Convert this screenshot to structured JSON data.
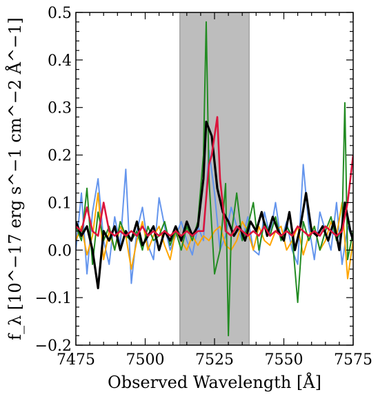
{
  "chart_data": {
    "type": "line",
    "xlabel": "Observed Wavelength [Å]",
    "ylabel": "f_λ [10^−17 erg s^−1 cm^−2 Å^−1]",
    "xlim": [
      7475,
      7575
    ],
    "ylim": [
      -0.2,
      0.5
    ],
    "x_ticks": [
      7475,
      7500,
      7525,
      7550,
      7575
    ],
    "y_ticks": [
      -0.2,
      -0.1,
      0.0,
      0.1,
      0.2,
      0.3,
      0.4,
      0.5
    ],
    "x_tick_labels": [
      "7475",
      "7500",
      "7525",
      "7550",
      "7575"
    ],
    "y_tick_labels": [
      "−0.2",
      "−0.1",
      "0.0",
      "0.1",
      "0.2",
      "0.3",
      "0.4",
      "0.5"
    ],
    "grid": false,
    "legend": "none",
    "shaded_region": {
      "x_start": 7512.5,
      "x_end": 7537.5,
      "color": "#bdbdbd"
    },
    "series": [
      {
        "color": "#6495ED",
        "x": [
          7475,
          7477,
          7479,
          7481,
          7483,
          7485,
          7487,
          7489,
          7491,
          7493,
          7495,
          7497,
          7499,
          7501,
          7503,
          7505,
          7507,
          7509,
          7511,
          7513,
          7515,
          7517,
          7519,
          7521,
          7523,
          7525,
          7527,
          7529,
          7531,
          7533,
          7535,
          7537,
          7539,
          7541,
          7543,
          7545,
          7547,
          7549,
          7551,
          7553,
          7555,
          7557,
          7559,
          7561,
          7563,
          7565,
          7567,
          7569,
          7571,
          7573,
          7575
        ],
        "y": [
          0.0,
          0.12,
          -0.05,
          0.08,
          0.15,
          0.02,
          -0.03,
          0.07,
          0.01,
          0.17,
          -0.07,
          0.04,
          0.09,
          0.01,
          -0.02,
          0.11,
          0.05,
          0.0,
          0.03,
          0.06,
          0.02,
          -0.01,
          0.05,
          0.02,
          0.21,
          0.12,
          0.0,
          0.03,
          0.09,
          0.05,
          0.02,
          0.07,
          0.0,
          -0.01,
          0.08,
          0.03,
          0.1,
          0.02,
          0.06,
          0.0,
          -0.03,
          0.18,
          0.05,
          -0.02,
          0.08,
          0.04,
          0.0,
          0.1,
          -0.03,
          0.05,
          0.02
        ]
      },
      {
        "color": "#FFA500",
        "x": [
          7475,
          7477,
          7479,
          7481,
          7483,
          7485,
          7487,
          7489,
          7491,
          7493,
          7495,
          7497,
          7499,
          7501,
          7503,
          7505,
          7507,
          7509,
          7511,
          7513,
          7515,
          7517,
          7519,
          7521,
          7523,
          7525,
          7527,
          7529,
          7531,
          7533,
          7535,
          7537,
          7539,
          7541,
          7543,
          7545,
          7547,
          7549,
          7551,
          7553,
          7555,
          7557,
          7559,
          7561,
          7563,
          7565,
          7567,
          7569,
          7571,
          7573,
          7575
        ],
        "y": [
          0.02,
          0.05,
          -0.01,
          0.03,
          0.12,
          -0.02,
          0.04,
          0.0,
          0.05,
          0.03,
          -0.04,
          0.02,
          0.06,
          0.0,
          0.03,
          0.05,
          0.01,
          -0.02,
          0.04,
          0.02,
          0.0,
          0.03,
          0.01,
          0.03,
          0.02,
          0.04,
          0.05,
          0.01,
          0.0,
          0.02,
          0.06,
          0.04,
          0.0,
          0.05,
          0.02,
          0.01,
          0.04,
          0.05,
          0.0,
          0.02,
          0.05,
          -0.01,
          0.03,
          0.05,
          0.0,
          0.02,
          0.06,
          0.03,
          0.1,
          -0.06,
          0.02
        ]
      },
      {
        "color": "#228B22",
        "x": [
          7475,
          7477,
          7479,
          7481,
          7483,
          7485,
          7487,
          7489,
          7491,
          7493,
          7495,
          7497,
          7499,
          7501,
          7503,
          7505,
          7507,
          7509,
          7511,
          7513,
          7515,
          7517,
          7519,
          7521,
          7522,
          7523,
          7525,
          7527,
          7529,
          7530,
          7531,
          7533,
          7535,
          7537,
          7539,
          7541,
          7543,
          7545,
          7547,
          7549,
          7551,
          7553,
          7555,
          7557,
          7559,
          7561,
          7563,
          7565,
          7567,
          7569,
          7571,
          7572,
          7573,
          7575
        ],
        "y": [
          0.05,
          0.02,
          0.13,
          -0.03,
          0.08,
          0.02,
          0.05,
          0.0,
          0.06,
          0.03,
          0.02,
          0.04,
          0.0,
          0.05,
          0.02,
          0.03,
          0.06,
          0.01,
          0.04,
          0.0,
          0.05,
          0.02,
          0.06,
          0.2,
          0.48,
          0.15,
          -0.05,
          0.0,
          0.14,
          -0.18,
          0.03,
          0.12,
          0.02,
          0.05,
          0.1,
          0.0,
          0.06,
          0.03,
          0.07,
          0.02,
          0.05,
          0.03,
          -0.11,
          0.06,
          0.02,
          0.05,
          0.0,
          0.04,
          0.07,
          0.02,
          0.05,
          0.31,
          -0.02,
          0.04
        ]
      },
      {
        "color": "#000000",
        "x": [
          7475,
          7477,
          7479,
          7481,
          7483,
          7485,
          7487,
          7489,
          7491,
          7493,
          7495,
          7497,
          7499,
          7501,
          7503,
          7505,
          7507,
          7509,
          7511,
          7513,
          7515,
          7517,
          7519,
          7521,
          7522,
          7524,
          7526,
          7528,
          7530,
          7532,
          7534,
          7536,
          7538,
          7540,
          7542,
          7544,
          7546,
          7548,
          7550,
          7552,
          7554,
          7556,
          7558,
          7560,
          7562,
          7564,
          7566,
          7568,
          7570,
          7572,
          7574,
          7575
        ],
        "y": [
          0.06,
          0.03,
          0.05,
          0.0,
          -0.08,
          0.04,
          0.02,
          0.05,
          0.0,
          0.04,
          0.02,
          0.06,
          0.01,
          0.03,
          0.05,
          0.0,
          0.04,
          0.02,
          0.05,
          0.02,
          0.06,
          0.03,
          0.05,
          0.15,
          0.27,
          0.24,
          0.13,
          0.08,
          0.06,
          0.03,
          0.05,
          0.02,
          0.06,
          0.04,
          0.08,
          0.03,
          0.07,
          0.04,
          0.02,
          0.08,
          0.0,
          0.05,
          0.12,
          0.04,
          0.03,
          0.05,
          0.02,
          0.06,
          0.0,
          0.1,
          0.04,
          0.02
        ]
      },
      {
        "color": "#DC143C",
        "x": [
          7475,
          7477,
          7479,
          7481,
          7483,
          7485,
          7487,
          7489,
          7491,
          7493,
          7495,
          7497,
          7499,
          7501,
          7503,
          7505,
          7507,
          7509,
          7511,
          7513,
          7515,
          7517,
          7519,
          7521,
          7523,
          7524,
          7526,
          7527,
          7529,
          7531,
          7533,
          7535,
          7537,
          7539,
          7541,
          7543,
          7545,
          7547,
          7549,
          7551,
          7553,
          7555,
          7557,
          7559,
          7561,
          7563,
          7565,
          7567,
          7569,
          7571,
          7573,
          7575
        ],
        "y": [
          0.05,
          0.04,
          0.09,
          0.04,
          0.03,
          0.1,
          0.04,
          0.03,
          0.04,
          0.03,
          0.04,
          0.03,
          0.05,
          0.03,
          0.04,
          0.03,
          0.04,
          0.03,
          0.04,
          0.03,
          0.04,
          0.03,
          0.04,
          0.04,
          0.18,
          0.2,
          0.28,
          0.15,
          0.04,
          0.03,
          0.05,
          0.04,
          0.03,
          0.04,
          0.03,
          0.05,
          0.03,
          0.04,
          0.03,
          0.04,
          0.03,
          0.05,
          0.04,
          0.03,
          0.04,
          0.03,
          0.05,
          0.04,
          0.03,
          0.04,
          0.1,
          0.2
        ]
      }
    ]
  }
}
